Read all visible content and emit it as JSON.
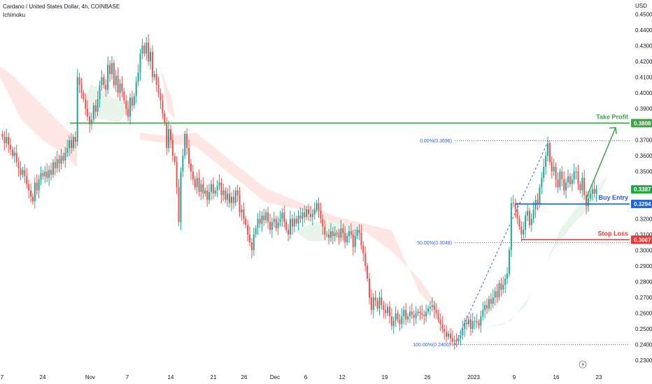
{
  "header": {
    "symbol_line": "Cardano / United States Dollar, 4h, COINBASE",
    "indicator": "Ichimoku"
  },
  "chart_data": {
    "type": "candlestick",
    "currency_label": "USD",
    "y_ticks": [
      "0.4500",
      "0.4400",
      "0.4300",
      "0.4200",
      "0.4100",
      "0.4000",
      "0.3900",
      "0.3700",
      "0.3600",
      "0.3500",
      "0.3200",
      "0.3100",
      "0.3000",
      "0.2900",
      "0.2800",
      "0.2700",
      "0.2600",
      "0.2500",
      "0.2400",
      "0.2300"
    ],
    "ylim": [
      0.2274,
      0.4555
    ],
    "x_ticks": [
      "7",
      "24",
      "Nov",
      "7",
      "14",
      "21",
      "26",
      "Dec",
      "6",
      "12",
      "19",
      "26",
      "2023",
      "9",
      "16",
      "23"
    ],
    "levels": {
      "take_profit": {
        "label": "Take Profit",
        "value": 0.3808,
        "value_text": "0.3808",
        "color": "#43a047"
      },
      "buy_entry": {
        "label": "Buy Entry",
        "value": 0.3294,
        "value_text": "0.3294",
        "color": "#1e63d9"
      },
      "stop_loss": {
        "label": "Stop Loss",
        "value": 0.3067,
        "value_text": "0.3067",
        "color": "#e53935"
      },
      "last_price": {
        "value": 0.3387,
        "value_text": "0.3387",
        "color": "#26a641"
      }
    },
    "fibonacci": [
      {
        "label": "0.00%(0.3696)",
        "value": 0.3696
      },
      {
        "label": "50.00%(0.3048)",
        "value": 0.3048
      },
      {
        "label": "100.00%(0.2400)",
        "value": 0.24
      }
    ],
    "closes": [
      0.372,
      0.368,
      0.372,
      0.367,
      0.364,
      0.36,
      0.362,
      0.356,
      0.352,
      0.348,
      0.351,
      0.347,
      0.342,
      0.338,
      0.334,
      0.331,
      0.343,
      0.338,
      0.345,
      0.349,
      0.347,
      0.35,
      0.346,
      0.351,
      0.348,
      0.356,
      0.352,
      0.358,
      0.355,
      0.36,
      0.357,
      0.362,
      0.365,
      0.37,
      0.365,
      0.372,
      0.369,
      0.41,
      0.405,
      0.4,
      0.396,
      0.39,
      0.385,
      0.38,
      0.383,
      0.392,
      0.388,
      0.396,
      0.405,
      0.41,
      0.405,
      0.402,
      0.418,
      0.412,
      0.419,
      0.405,
      0.411,
      0.4,
      0.406,
      0.401,
      0.395,
      0.39,
      0.385,
      0.397,
      0.392,
      0.398,
      0.407,
      0.413,
      0.425,
      0.43,
      0.425,
      0.432,
      0.42,
      0.426,
      0.41,
      0.412,
      0.405,
      0.4,
      0.395,
      0.387,
      0.381,
      0.365,
      0.377,
      0.37,
      0.36,
      0.356,
      0.34,
      0.318,
      0.35,
      0.36,
      0.374,
      0.365,
      0.355,
      0.35,
      0.345,
      0.34,
      0.346,
      0.337,
      0.342,
      0.336,
      0.338,
      0.332,
      0.337,
      0.342,
      0.336,
      0.338,
      0.341,
      0.343,
      0.335,
      0.338,
      0.332,
      0.336,
      0.33,
      0.334,
      0.33,
      0.338,
      0.335,
      0.324,
      0.326,
      0.32,
      0.316,
      0.31,
      0.305,
      0.3,
      0.31,
      0.314,
      0.32,
      0.317,
      0.322,
      0.319,
      0.324,
      0.318,
      0.313,
      0.318,
      0.32,
      0.314,
      0.318,
      0.32,
      0.324,
      0.318,
      0.313,
      0.31,
      0.32,
      0.315,
      0.32,
      0.317,
      0.322,
      0.32,
      0.324,
      0.321,
      0.326,
      0.323,
      0.321,
      0.323,
      0.326,
      0.33,
      0.325,
      0.32,
      0.315,
      0.31,
      0.31,
      0.308,
      0.312,
      0.309,
      0.311,
      0.31,
      0.308,
      0.314,
      0.311,
      0.305,
      0.309,
      0.312,
      0.31,
      0.302,
      0.309,
      0.313,
      0.311,
      0.303,
      0.298,
      0.29,
      0.282,
      0.27,
      0.262,
      0.27,
      0.268,
      0.263,
      0.27,
      0.265,
      0.262,
      0.26,
      0.264,
      0.258,
      0.252,
      0.255,
      0.26,
      0.256,
      0.253,
      0.258,
      0.262,
      0.256,
      0.258,
      0.261,
      0.259,
      0.257,
      0.26,
      0.261,
      0.26,
      0.259,
      0.258,
      0.261,
      0.263,
      0.264,
      0.265,
      0.262,
      0.26,
      0.256,
      0.253,
      0.25,
      0.248,
      0.245,
      0.247,
      0.244,
      0.242,
      0.243,
      0.242,
      0.244,
      0.246,
      0.25,
      0.254,
      0.253,
      0.256,
      0.25,
      0.255,
      0.255,
      0.254,
      0.252,
      0.258,
      0.262,
      0.265,
      0.263,
      0.269,
      0.266,
      0.27,
      0.274,
      0.27,
      0.279,
      0.275,
      0.278,
      0.282,
      0.285,
      0.3,
      0.33,
      0.33,
      0.326,
      0.32,
      0.315,
      0.31,
      0.313,
      0.322,
      0.325,
      0.316,
      0.32,
      0.326,
      0.332,
      0.329,
      0.34,
      0.346,
      0.353,
      0.36,
      0.368,
      0.356,
      0.35,
      0.353,
      0.345,
      0.34,
      0.35,
      0.345,
      0.338,
      0.343,
      0.347,
      0.342,
      0.345,
      0.35,
      0.35,
      0.342,
      0.338,
      0.346,
      0.335,
      0.328,
      0.333,
      0.336,
      0.339,
      0.336,
      0.3387
    ]
  },
  "icons": {
    "footer": "lightning-bolt-icon"
  }
}
